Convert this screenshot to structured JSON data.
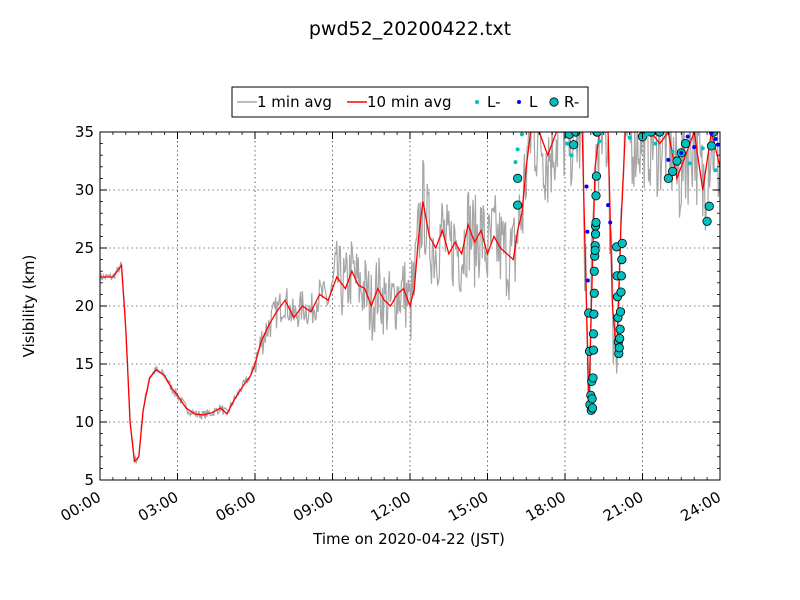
{
  "chart_data": {
    "type": "line",
    "title": "pwd52_20200422.txt",
    "xlabel": "Time on 2020-04-22 (JST)",
    "ylabel": "Visibility (km)",
    "xlim_hours": [
      0,
      24
    ],
    "ylim": [
      5,
      35
    ],
    "xticks": [
      "00:00",
      "03:00",
      "06:00",
      "09:00",
      "12:00",
      "15:00",
      "18:00",
      "21:00",
      "24:00"
    ],
    "yticks": [
      5,
      10,
      15,
      20,
      25,
      30,
      35
    ],
    "grid": true,
    "legend_position": "top-center",
    "legend": [
      "1 min avg",
      "10 min avg",
      "L-",
      "L",
      "R-"
    ],
    "colors": {
      "one_min": "#a6a6a6",
      "ten_min": "#ff0000",
      "l_minus": "#00bfbf",
      "l": "#0000ff",
      "r_minus": "#00bfbf"
    },
    "series": [
      {
        "name": "10 min avg",
        "x": [
          "00:00",
          "00:30",
          "00:50",
          "01:00",
          "01:10",
          "01:20",
          "01:30",
          "01:40",
          "01:55",
          "02:10",
          "02:30",
          "02:45",
          "03:00",
          "03:20",
          "03:40",
          "04:00",
          "04:20",
          "04:40",
          "04:55",
          "05:10",
          "05:30",
          "05:50",
          "06:00",
          "06:15",
          "06:30",
          "06:50",
          "07:10",
          "07:30",
          "07:50",
          "08:10",
          "08:30",
          "08:50",
          "09:10",
          "09:30",
          "09:45",
          "10:00",
          "10:15",
          "10:30",
          "10:45",
          "11:00",
          "11:15",
          "11:30",
          "11:45",
          "12:00",
          "12:10",
          "12:20",
          "12:30",
          "12:45",
          "13:00",
          "13:15",
          "13:30",
          "13:45",
          "14:00",
          "14:15",
          "14:30",
          "14:45",
          "15:00",
          "15:15",
          "15:30",
          "15:45",
          "16:00",
          "16:10",
          "16:20",
          "16:30",
          "16:40",
          "17:00",
          "17:20",
          "17:40",
          "18:00",
          "18:20",
          "18:40",
          "18:50",
          "18:55",
          "19:00",
          "19:10",
          "19:20",
          "19:40",
          "19:50",
          "20:00",
          "20:10",
          "20:20",
          "20:40",
          "21:00",
          "21:20",
          "21:40",
          "22:00",
          "22:20",
          "22:40",
          "23:00",
          "23:20",
          "23:40",
          "24:00"
        ],
        "values": [
          22.5,
          22.5,
          23.5,
          18.0,
          10.0,
          6.6,
          7.0,
          11.0,
          13.8,
          14.5,
          14.0,
          13.0,
          12.3,
          11.2,
          10.7,
          10.6,
          10.8,
          11.2,
          10.7,
          11.8,
          13.0,
          14.0,
          15.0,
          17.0,
          18.2,
          19.5,
          20.5,
          19.0,
          20.0,
          19.5,
          21.0,
          20.5,
          22.5,
          21.5,
          23.0,
          21.8,
          21.5,
          20.0,
          21.5,
          20.5,
          20.0,
          21.0,
          21.5,
          20.0,
          21.5,
          26.0,
          29.0,
          26.0,
          25.0,
          26.5,
          24.5,
          25.5,
          24.5,
          27.0,
          25.5,
          26.5,
          24.5,
          26.0,
          25.0,
          24.5,
          24.0,
          26.5,
          28.0,
          32.0,
          35.0,
          35.0,
          33.0,
          35.0,
          35.0,
          35.0,
          35.0,
          20.0,
          11.0,
          18.0,
          32.0,
          35.0,
          35.0,
          20.0,
          16.0,
          27.0,
          35.0,
          35.0,
          35.0,
          35.0,
          34.0,
          35.0,
          31.0,
          33.0,
          35.0,
          30.0,
          35.0,
          32.0
        ]
      },
      {
        "name": "R-",
        "x": [
          "16:10",
          "16:10",
          "18:10",
          "18:20",
          "18:25",
          "18:55",
          "18:57",
          "18:58",
          "19:00",
          "19:01",
          "19:02",
          "19:03",
          "19:04",
          "19:05",
          "19:06",
          "19:06",
          "19:07",
          "19:08",
          "19:08",
          "19:09",
          "19:10",
          "19:10",
          "19:11",
          "19:11",
          "19:12",
          "19:12",
          "19:13",
          "19:14",
          "19:15",
          "20:00",
          "20:01",
          "20:02",
          "20:03",
          "20:04",
          "20:05",
          "20:06",
          "20:07",
          "20:08",
          "20:09",
          "20:10",
          "20:11",
          "20:12",
          "20:13",
          "21:00",
          "21:20",
          "21:40",
          "22:00",
          "22:10",
          "22:20",
          "22:30",
          "22:40",
          "23:30",
          "23:35",
          "23:40",
          "23:45"
        ],
        "values": [
          28.7,
          31.0,
          34.8,
          33.9,
          35.0,
          19.4,
          16.1,
          11.5,
          12.3,
          11.0,
          13.5,
          12.0,
          11.2,
          13.8,
          16.2,
          17.6,
          19.3,
          21.1,
          23.0,
          24.3,
          25.2,
          24.8,
          26.2,
          26.9,
          27.2,
          29.5,
          31.2,
          35.0,
          35.0,
          25.1,
          22.6,
          20.8,
          19.0,
          16.9,
          15.9,
          16.4,
          17.2,
          18.0,
          19.5,
          21.2,
          22.6,
          24.0,
          25.4,
          34.6,
          35.0,
          35.0,
          31.0,
          31.6,
          32.5,
          33.2,
          34.0,
          27.3,
          28.6,
          33.8,
          35.0
        ]
      },
      {
        "name": "L-",
        "x": [
          "16:05",
          "16:10",
          "16:20",
          "18:05",
          "18:15",
          "19:20",
          "19:25",
          "20:30",
          "21:10",
          "21:30",
          "22:10",
          "22:50",
          "23:20",
          "23:50"
        ],
        "values": [
          32.4,
          33.5,
          34.8,
          34.0,
          33.0,
          34.2,
          35.0,
          34.5,
          34.8,
          34.0,
          33.3,
          32.3,
          33.6,
          31.7
        ]
      },
      {
        "name": "L",
        "x": [
          "18:50",
          "18:52",
          "18:53",
          "19:40",
          "19:45",
          "22:00",
          "22:30",
          "22:45",
          "23:00",
          "23:40",
          "23:50",
          "23:55"
        ],
        "values": [
          30.3,
          26.4,
          22.2,
          28.7,
          27.2,
          32.6,
          33.2,
          34.6,
          33.7,
          34.9,
          34.4,
          33.9
        ]
      }
    ]
  }
}
